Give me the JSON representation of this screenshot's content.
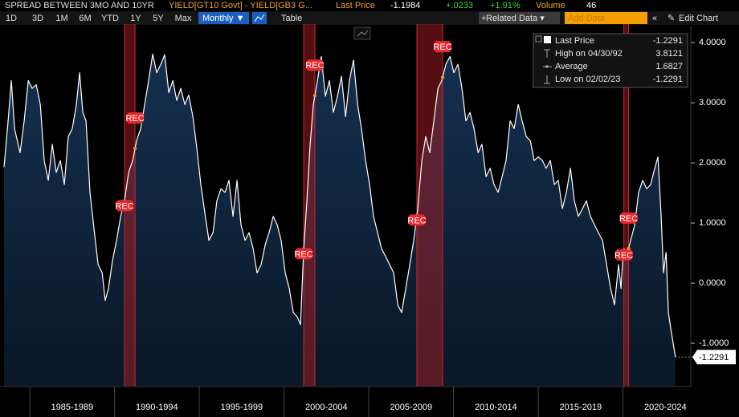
{
  "header": {
    "title": "SPREAD BETWEEN 3MO AND 10YR",
    "formula": "YIELD[GT10 Govt] - YIELD[GB3 G...",
    "last_price_label": "Last Price",
    "last_price": "-1.1984",
    "change": "+.0233",
    "change_pct": "+1.91%",
    "volume_label": "Volume",
    "volume": "46"
  },
  "toolbar": {
    "ranges": [
      "1D",
      "3D",
      "1M",
      "6M",
      "YTD",
      "1Y",
      "5Y",
      "Max"
    ],
    "frequency": "Monthly ▼",
    "table": "Table",
    "related": "Related Data ▾",
    "add_data": "Add Data",
    "edit": "Edit Chart"
  },
  "chart_data": {
    "type": "area",
    "x": [
      1983.48,
      1983.72,
      1983.91,
      1984.1,
      1984.43,
      1984.67,
      1984.91,
      1985.14,
      1985.38,
      1985.62,
      1985.85,
      1986.09,
      1986.33,
      1986.56,
      1986.8,
      1987.04,
      1987.27,
      1987.51,
      1987.75,
      1987.94,
      1988.13,
      1988.32,
      1988.55,
      1988.79,
      1989.03,
      1989.27,
      1989.45,
      1989.64,
      1989.88,
      1990.12,
      1990.36,
      1990.59,
      1990.83,
      1991.07,
      1991.3,
      1991.54,
      1991.78,
      1992.01,
      1992.25,
      1992.49,
      1992.73,
      1992.96,
      1993.2,
      1993.44,
      1993.67,
      1993.91,
      1994.15,
      1994.38,
      1994.62,
      1994.86,
      1995.09,
      1995.33,
      1995.57,
      1995.81,
      1996.04,
      1996.28,
      1996.52,
      1996.75,
      1996.99,
      1997.23,
      1997.46,
      1997.7,
      1997.94,
      1998.18,
      1998.41,
      1998.65,
      1998.89,
      1999.12,
      1999.36,
      1999.6,
      1999.83,
      2000.07,
      2000.31,
      2000.55,
      2000.78,
      2000.97,
      2001.16,
      2001.35,
      2001.54,
      2001.73,
      2001.97,
      2002.2,
      2002.44,
      2002.68,
      2002.91,
      2003.15,
      2003.39,
      2003.63,
      2003.86,
      2004.1,
      2004.34,
      2004.57,
      2004.81,
      2005.05,
      2005.28,
      2005.52,
      2005.76,
      2006.0,
      2006.23,
      2006.47,
      2006.71,
      2006.94,
      2007.18,
      2007.42,
      2007.65,
      2007.89,
      2008.13,
      2008.36,
      2008.6,
      2008.84,
      2009.08,
      2009.31,
      2009.55,
      2009.79,
      2010.02,
      2010.26,
      2010.5,
      2010.73,
      2010.97,
      2011.21,
      2011.45,
      2011.68,
      2011.92,
      2012.16,
      2012.39,
      2012.63,
      2012.87,
      2013.1,
      2013.34,
      2013.58,
      2013.82,
      2014.05,
      2014.29,
      2014.53,
      2014.76,
      2015.0,
      2015.24,
      2015.47,
      2015.71,
      2015.95,
      2016.18,
      2016.42,
      2016.66,
      2016.9,
      2017.13,
      2017.37,
      2017.61,
      2017.84,
      2018.08,
      2018.32,
      2018.55,
      2018.79,
      2019.03,
      2019.27,
      2019.5,
      2019.74,
      2019.88,
      2020.02,
      2020.21,
      2020.45,
      2020.69,
      2020.92,
      2021.16,
      2021.4,
      2021.63,
      2021.87,
      2022.06,
      2022.25,
      2022.39,
      2022.54,
      2022.68,
      2022.82,
      2023.09
    ],
    "series": [
      {
        "name": "Last Price",
        "color": "#ffffff",
        "values": [
          1.93,
          2.7,
          3.37,
          2.57,
          2.17,
          2.7,
          3.37,
          3.24,
          3.3,
          2.97,
          2.04,
          1.71,
          2.31,
          1.84,
          2.04,
          1.64,
          2.44,
          2.57,
          2.97,
          3.5,
          2.84,
          2.7,
          1.51,
          0.91,
          0.31,
          0.17,
          -0.29,
          -0.09,
          0.37,
          0.71,
          1.11,
          1.37,
          1.84,
          2.04,
          2.37,
          2.57,
          2.97,
          3.37,
          3.81,
          3.5,
          3.64,
          3.8,
          3.17,
          3.37,
          3.04,
          3.24,
          2.97,
          3.13,
          2.77,
          2.24,
          1.64,
          1.17,
          0.71,
          0.84,
          1.37,
          1.57,
          1.51,
          1.71,
          1.11,
          1.71,
          0.97,
          0.71,
          0.84,
          0.57,
          0.17,
          0.31,
          0.64,
          0.84,
          1.11,
          0.97,
          0.71,
          0.17,
          -0.09,
          -0.49,
          -0.56,
          -0.69,
          0.57,
          1.37,
          2.31,
          2.97,
          3.37,
          3.77,
          3.11,
          3.37,
          2.84,
          3.11,
          3.44,
          2.77,
          3.37,
          3.71,
          2.97,
          2.57,
          2.04,
          1.64,
          1.11,
          0.84,
          0.57,
          0.44,
          0.31,
          0.17,
          -0.36,
          -0.49,
          -0.09,
          0.31,
          0.71,
          1.24,
          2.04,
          2.44,
          2.17,
          2.7,
          3.24,
          3.37,
          3.64,
          3.77,
          3.5,
          3.64,
          3.24,
          2.7,
          2.84,
          2.57,
          2.17,
          2.31,
          1.77,
          1.91,
          1.64,
          1.51,
          1.77,
          2.04,
          2.7,
          2.57,
          2.97,
          2.7,
          2.44,
          2.37,
          2.04,
          2.1,
          2.04,
          1.91,
          2.04,
          1.64,
          1.71,
          1.24,
          1.51,
          1.91,
          1.37,
          1.11,
          1.24,
          1.37,
          1.11,
          0.97,
          0.84,
          0.71,
          0.31,
          -0.09,
          -0.36,
          0.31,
          -0.09,
          0.57,
          0.44,
          0.71,
          0.97,
          1.51,
          1.71,
          1.57,
          1.64,
          1.91,
          2.1,
          1.11,
          0.17,
          0.51,
          -0.49,
          -0.76,
          -1.2291
        ]
      }
    ],
    "stats": [
      {
        "label": "High on 04/30/92",
        "value": 3.8121
      },
      {
        "label": "Average",
        "value": 1.6827
      },
      {
        "label": "Low on 02/02/23",
        "value": -1.2291
      }
    ],
    "recession_label": "REC",
    "recessions": [
      {
        "start": 1990.59,
        "end": 1991.21
      },
      {
        "start": 2001.16,
        "end": 2001.82
      },
      {
        "start": 2007.84,
        "end": 2009.36
      },
      {
        "start": 2020.05,
        "end": 2020.33
      }
    ],
    "xlim": [
      1983.48,
      2024.0
    ],
    "xticks": [
      {
        "value": 1985,
        "label": "1985-1989"
      },
      {
        "value": 1990,
        "label": "1990-1994"
      },
      {
        "value": 1995,
        "label": "1995-1999"
      },
      {
        "value": 2000,
        "label": "2000-2004"
      },
      {
        "value": 2005,
        "label": "2005-2009"
      },
      {
        "value": 2010,
        "label": "2010-2014"
      },
      {
        "value": 2015,
        "label": "2015-2019"
      },
      {
        "value": 2020,
        "label": "2020-2024"
      }
    ],
    "ylim": [
      -1.72,
      4.31
    ],
    "yticks": [
      {
        "value": -1,
        "label": "-1.0000"
      },
      {
        "value": 0,
        "label": "0.0000"
      },
      {
        "value": 1,
        "label": "1.0000"
      },
      {
        "value": 2,
        "label": "2.0000"
      },
      {
        "value": 3,
        "label": "3.0000"
      },
      {
        "value": 4,
        "label": "4.0000"
      }
    ],
    "axis_side": "right",
    "grid": false
  }
}
